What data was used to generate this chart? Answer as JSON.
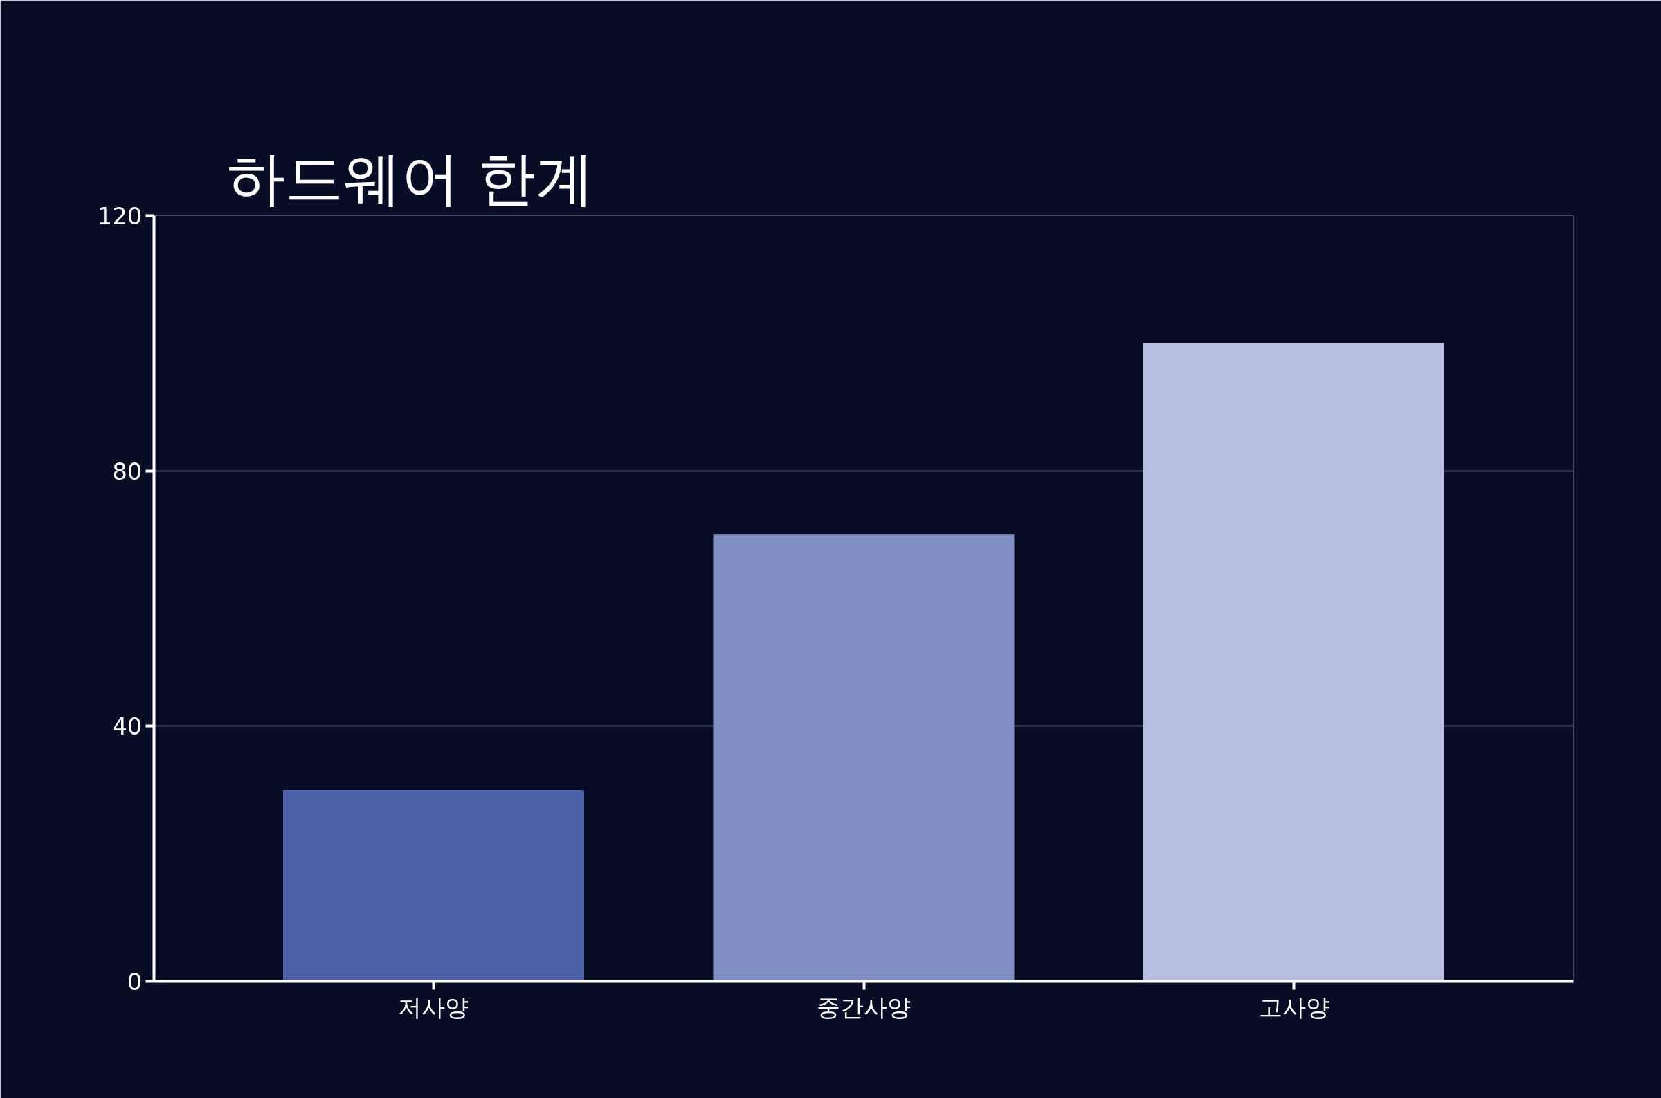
{
  "chart_data": {
    "type": "bar",
    "title": "하드웨어 한계",
    "categories": [
      "저사양",
      "중간사양",
      "고사양"
    ],
    "values": [
      30,
      70,
      100
    ],
    "colors": [
      "#4c60a8",
      "#8190c4",
      "#b7bedf"
    ],
    "ylim": [
      0,
      120
    ],
    "yticks": [
      0,
      40,
      80,
      120
    ],
    "grid": "y"
  }
}
